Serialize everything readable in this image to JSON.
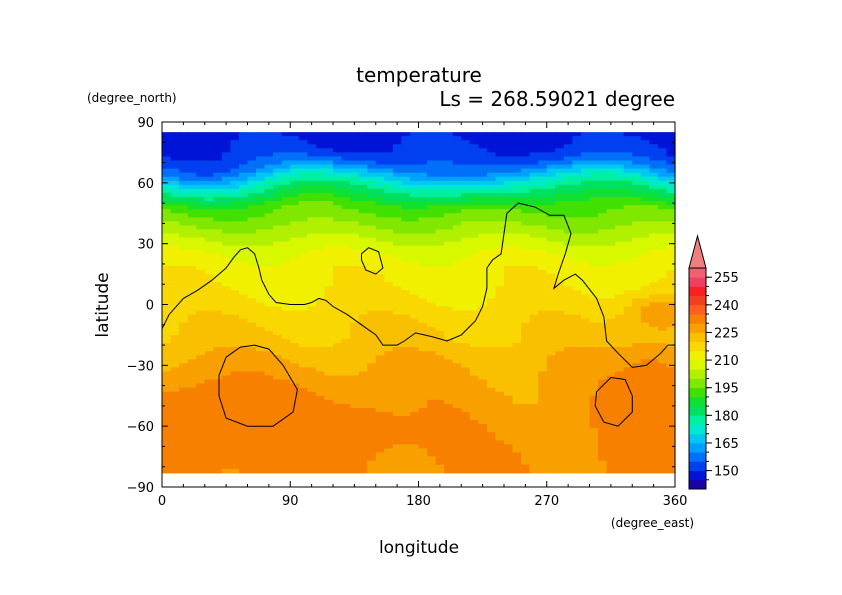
{
  "chart_data": {
    "type": "heatmap",
    "title": "temperature",
    "subtitle": "Ls = 268.59021 degree",
    "xlabel": "longitude",
    "ylabel": "latitude",
    "x_units": "(degree_east)",
    "y_units": "(degree_north)",
    "xlim": [
      0,
      360
    ],
    "ylim": [
      -90,
      90
    ],
    "x_ticks": [
      "0",
      "90",
      "180",
      "270",
      "360"
    ],
    "y_ticks": [
      "90",
      "60",
      "30",
      "0",
      "−30",
      "−60",
      "−90"
    ],
    "data_lon_range": [
      0,
      360
    ],
    "data_lat_range": [
      -82,
      85
    ],
    "colorbar": {
      "levels": [
        140,
        145,
        150,
        155,
        160,
        165,
        170,
        175,
        180,
        185,
        190,
        195,
        200,
        205,
        210,
        215,
        220,
        225,
        230,
        235,
        240,
        245,
        250,
        255,
        260
      ],
      "tick_labels": [
        "150",
        "165",
        "180",
        "195",
        "210",
        "225",
        "240",
        "255"
      ],
      "extend": "max",
      "colors": [
        "#1a00a8",
        "#0014d8",
        "#0040f0",
        "#0070f8",
        "#00a0ff",
        "#00c8f0",
        "#00e8d0",
        "#00f0a0",
        "#00e060",
        "#10e030",
        "#40e000",
        "#80e800",
        "#b0f000",
        "#d8f800",
        "#f0f000",
        "#f8d800",
        "#f8c000",
        "#f8a000",
        "#f88000",
        "#f86020",
        "#f04020",
        "#f82020",
        "#f04060",
        "#f06070"
      ]
    },
    "field_profile": {
      "lat": [
        85,
        75,
        68,
        62,
        55,
        48,
        40,
        32,
        25,
        18,
        10,
        2,
        -5,
        -12,
        -18,
        -25,
        -35,
        -45,
        -55,
        -65,
        -75,
        -82
      ],
      "value": [
        148,
        151,
        158,
        170,
        182,
        193,
        199,
        205,
        210,
        213,
        214,
        216,
        218,
        220,
        221,
        224,
        226,
        227,
        228,
        229,
        230,
        230
      ]
    },
    "contours": [
      {
        "value": 0,
        "points": [
          [
            0,
            -12
          ],
          [
            5,
            -5
          ],
          [
            15,
            3
          ],
          [
            25,
            7
          ],
          [
            35,
            12
          ],
          [
            45,
            18
          ],
          [
            50,
            23
          ],
          [
            55,
            27
          ],
          [
            60,
            28
          ],
          [
            65,
            25
          ],
          [
            68,
            18
          ],
          [
            70,
            12
          ],
          [
            75,
            5
          ],
          [
            80,
            1
          ],
          [
            90,
            0
          ],
          [
            100,
            0
          ],
          [
            105,
            1
          ],
          [
            110,
            3
          ],
          [
            115,
            2
          ],
          [
            120,
            -1
          ],
          [
            130,
            -5
          ],
          [
            140,
            -10
          ],
          [
            150,
            -15
          ],
          [
            155,
            -20
          ],
          [
            165,
            -20
          ],
          [
            170,
            -18
          ],
          [
            178,
            -14
          ],
          [
            190,
            -16
          ],
          [
            200,
            -18
          ],
          [
            210,
            -15
          ],
          [
            220,
            -8
          ],
          [
            225,
            -1
          ],
          [
            228,
            8
          ],
          [
            228,
            18
          ],
          [
            232,
            22
          ],
          [
            238,
            25
          ],
          [
            240,
            35
          ],
          [
            242,
            45
          ],
          [
            250,
            50
          ],
          [
            262,
            48
          ],
          [
            272,
            44
          ],
          [
            282,
            44
          ],
          [
            287,
            35
          ],
          [
            283,
            25
          ],
          [
            278,
            15
          ],
          [
            275,
            8
          ],
          [
            282,
            12
          ],
          [
            290,
            15
          ],
          [
            295,
            12
          ],
          [
            305,
            3
          ],
          [
            310,
            -6
          ],
          [
            312,
            -18
          ],
          [
            320,
            -24
          ],
          [
            330,
            -31
          ],
          [
            340,
            -30
          ],
          [
            350,
            -24
          ],
          [
            355,
            -20
          ],
          [
            360,
            -20
          ]
        ]
      },
      {
        "value": 0,
        "points": [
          [
            140,
            25
          ],
          [
            145,
            28
          ],
          [
            152,
            26
          ],
          [
            155,
            18
          ],
          [
            150,
            15
          ],
          [
            143,
            17
          ],
          [
            140,
            22
          ],
          [
            140,
            25
          ]
        ]
      },
      {
        "value": 0,
        "points": [
          [
            45,
            -26
          ],
          [
            55,
            -21
          ],
          [
            65,
            -20
          ],
          [
            75,
            -22
          ],
          [
            85,
            -30
          ],
          [
            95,
            -42
          ],
          [
            92,
            -53
          ],
          [
            78,
            -60
          ],
          [
            60,
            -60
          ],
          [
            45,
            -56
          ],
          [
            40,
            -45
          ],
          [
            40,
            -35
          ],
          [
            45,
            -26
          ]
        ]
      },
      {
        "value": 0,
        "points": [
          [
            305,
            -43
          ],
          [
            315,
            -36
          ],
          [
            325,
            -37
          ],
          [
            330,
            -45
          ],
          [
            330,
            -53
          ],
          [
            320,
            -60
          ],
          [
            310,
            -58
          ],
          [
            304,
            -50
          ],
          [
            305,
            -43
          ]
        ]
      }
    ],
    "warm_anomalies": [
      {
        "lon": 45,
        "lat": -58,
        "rlon": 70,
        "rlat": 20,
        "value": 235
      },
      {
        "lon": 120,
        "lat": -62,
        "rlon": 60,
        "rlat": 14,
        "value": 232
      },
      {
        "lon": 345,
        "lat": -52,
        "rlon": 30,
        "rlat": 30,
        "value": 234
      },
      {
        "lon": 350,
        "lat": -5,
        "rlon": 25,
        "rlat": 10,
        "value": 226
      }
    ]
  }
}
